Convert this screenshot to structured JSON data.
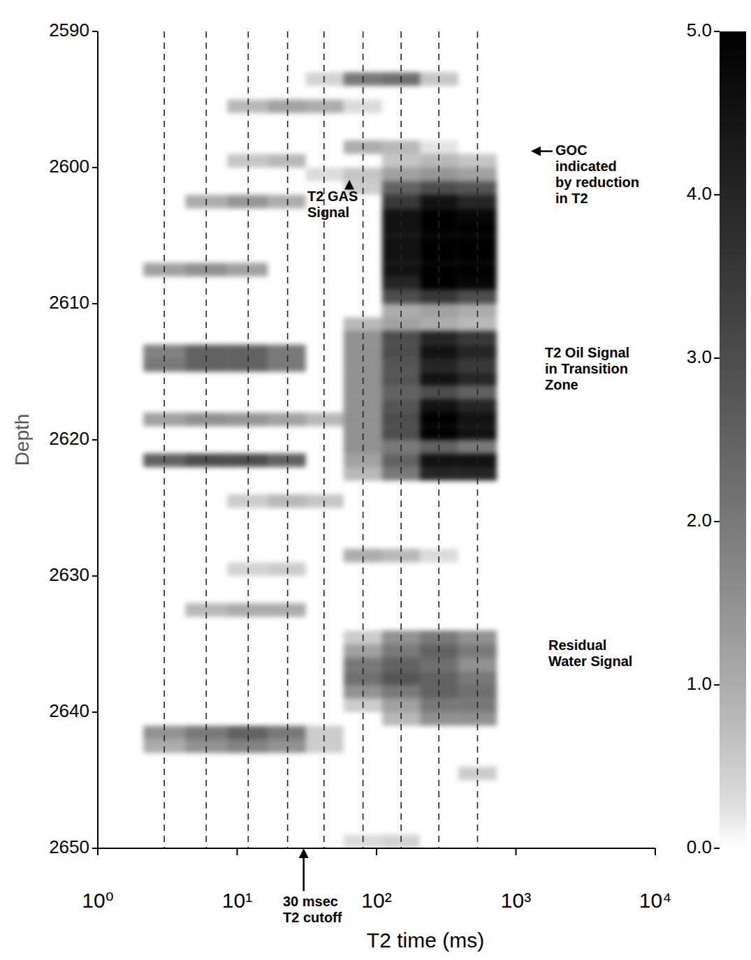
{
  "chart_data": {
    "type": "heatmap",
    "x_label": "T2 time (ms)",
    "y_label": "Depth",
    "log": "x",
    "grid": true,
    "xlim": [
      1,
      10000
    ],
    "ylim": [
      2590,
      2650
    ],
    "xticks": [
      {
        "value": 1,
        "label": "10⁰"
      },
      {
        "value": 10,
        "label": "10¹"
      },
      {
        "value": 100,
        "label": "10²"
      },
      {
        "value": 1000,
        "label": "10³"
      },
      {
        "value": 10000,
        "label": "10⁴"
      }
    ],
    "yticks": [
      2590,
      2600,
      2610,
      2620,
      2630,
      2640,
      2650
    ],
    "x": [
      3,
      6,
      12,
      23,
      42,
      80,
      150,
      280,
      530
    ],
    "cells": [
      {
        "depth": 2593.5,
        "values": [
          0,
          0,
          0,
          0,
          0.4,
          2.0,
          2.2,
          0.6,
          0
        ]
      },
      {
        "depth": 2595.5,
        "values": [
          0,
          0,
          0.8,
          1.2,
          1.0,
          0.3,
          0,
          0,
          0
        ]
      },
      {
        "depth": 2598.5,
        "values": [
          0,
          0,
          0,
          0,
          0,
          1.0,
          0.8,
          0.2,
          0
        ]
      },
      {
        "depth": 2599.5,
        "values": [
          0,
          0,
          0.6,
          0.8,
          0,
          0,
          0.6,
          0.8,
          0.6
        ]
      },
      {
        "depth": 2600.5,
        "values": [
          0,
          0,
          0,
          0,
          0.3,
          0.6,
          1.2,
          1.4,
          1.2
        ]
      },
      {
        "depth": 2601.5,
        "values": [
          0,
          0,
          0,
          0,
          0,
          0.5,
          2.5,
          3.0,
          2.8
        ]
      },
      {
        "depth": 2602.5,
        "values": [
          0,
          1.0,
          1.4,
          1.0,
          0,
          0,
          3.5,
          4.5,
          4.0
        ]
      },
      {
        "depth": 2603.5,
        "values": [
          0,
          0,
          0,
          0,
          0,
          0,
          4.5,
          5.0,
          4.8
        ]
      },
      {
        "depth": 2604.5,
        "values": [
          0,
          0,
          0,
          0,
          0,
          0,
          4.5,
          5.0,
          5.0
        ]
      },
      {
        "depth": 2605.5,
        "values": [
          0,
          0,
          0,
          0,
          0,
          0,
          4.5,
          5.0,
          5.0
        ]
      },
      {
        "depth": 2606.5,
        "values": [
          0,
          0,
          0,
          0,
          0,
          0,
          4.5,
          5.0,
          5.0
        ]
      },
      {
        "depth": 2607.5,
        "values": [
          1.2,
          1.5,
          1.2,
          0,
          0,
          0,
          4.5,
          5.0,
          5.0
        ]
      },
      {
        "depth": 2608.5,
        "values": [
          0,
          0,
          0,
          0,
          0,
          0,
          4.0,
          5.0,
          4.8
        ]
      },
      {
        "depth": 2609.5,
        "values": [
          0,
          0,
          0,
          0,
          0,
          0,
          3.0,
          3.5,
          3.0
        ]
      },
      {
        "depth": 2610.5,
        "values": [
          0,
          0,
          0,
          0,
          0,
          0,
          1.0,
          1.2,
          1.0
        ]
      },
      {
        "depth": 2611.5,
        "values": [
          0,
          0,
          0,
          0,
          0,
          0.8,
          1.2,
          1.0,
          0.8
        ]
      },
      {
        "depth": 2612.5,
        "values": [
          0,
          0,
          0,
          0,
          0,
          1.5,
          3.0,
          4.0,
          3.5
        ]
      },
      {
        "depth": 2613.5,
        "values": [
          1.8,
          2.5,
          2.5,
          2.0,
          0,
          1.5,
          3.0,
          4.5,
          4.0
        ]
      },
      {
        "depth": 2614.5,
        "values": [
          2.0,
          2.5,
          2.5,
          2.0,
          0,
          1.5,
          2.8,
          4.0,
          3.5
        ]
      },
      {
        "depth": 2615.5,
        "values": [
          0,
          0,
          0,
          0,
          0,
          1.5,
          2.8,
          4.5,
          4.0
        ]
      },
      {
        "depth": 2616.5,
        "values": [
          0,
          0,
          0,
          0,
          0,
          1.5,
          2.5,
          3.0,
          2.5
        ]
      },
      {
        "depth": 2617.5,
        "values": [
          0,
          0,
          0,
          0,
          0,
          1.5,
          2.8,
          4.5,
          4.0
        ]
      },
      {
        "depth": 2618.5,
        "values": [
          1.2,
          1.5,
          1.4,
          1.2,
          0.8,
          1.5,
          3.0,
          5.0,
          4.5
        ]
      },
      {
        "depth": 2619.5,
        "values": [
          0,
          0,
          0,
          0,
          0,
          1.5,
          3.0,
          5.0,
          4.5
        ]
      },
      {
        "depth": 2620.5,
        "values": [
          0,
          0,
          0,
          0,
          0,
          1.5,
          2.0,
          2.5,
          2.0
        ]
      },
      {
        "depth": 2621.5,
        "values": [
          2.5,
          3.0,
          3.0,
          2.5,
          0,
          1.2,
          2.5,
          4.5,
          4.5
        ]
      },
      {
        "depth": 2622.5,
        "values": [
          0,
          0,
          0,
          0,
          0,
          0.8,
          2.0,
          4.0,
          4.0
        ]
      },
      {
        "depth": 2624.5,
        "values": [
          0,
          0,
          0.5,
          0.8,
          0.6,
          0,
          0,
          0,
          0
        ]
      },
      {
        "depth": 2628.5,
        "values": [
          0,
          0,
          0,
          0,
          0,
          1.0,
          0.8,
          0.3,
          0
        ]
      },
      {
        "depth": 2629.5,
        "values": [
          0,
          0,
          0.4,
          0.5,
          0,
          0,
          0,
          0,
          0
        ]
      },
      {
        "depth": 2632.5,
        "values": [
          0,
          0.8,
          1.0,
          1.0,
          0,
          0,
          0,
          0,
          0
        ]
      },
      {
        "depth": 2634.5,
        "values": [
          0,
          0,
          0,
          0,
          0,
          0.5,
          1.5,
          2.0,
          1.5
        ]
      },
      {
        "depth": 2635.5,
        "values": [
          0,
          0,
          0,
          0,
          0,
          1.2,
          2.0,
          2.5,
          2.0
        ]
      },
      {
        "depth": 2636.5,
        "values": [
          0,
          0,
          0,
          0,
          0,
          2.0,
          2.5,
          2.2,
          1.5
        ]
      },
      {
        "depth": 2637.5,
        "values": [
          0,
          0,
          0,
          0,
          0,
          2.2,
          2.8,
          2.5,
          2.0
        ]
      },
      {
        "depth": 2638.5,
        "values": [
          0,
          0,
          0,
          0,
          0,
          1.5,
          2.0,
          2.5,
          2.2
        ]
      },
      {
        "depth": 2639.5,
        "values": [
          0,
          0,
          0,
          0,
          0,
          0.5,
          1.2,
          2.0,
          2.0
        ]
      },
      {
        "depth": 2640.5,
        "values": [
          0,
          0,
          0,
          0,
          0,
          0,
          0.8,
          1.5,
          1.5
        ]
      },
      {
        "depth": 2641.5,
        "values": [
          1.5,
          2.0,
          2.5,
          2.0,
          0.5,
          0,
          0,
          0,
          0
        ]
      },
      {
        "depth": 2642.5,
        "values": [
          1.0,
          1.5,
          1.8,
          1.5,
          0.5,
          0,
          0,
          0,
          0
        ]
      },
      {
        "depth": 2644.5,
        "values": [
          0,
          0,
          0,
          0,
          0,
          0,
          0,
          0,
          0.5
        ]
      },
      {
        "depth": 2649.5,
        "values": [
          0,
          0,
          0,
          0,
          0,
          0.3,
          0.4,
          0,
          0
        ]
      }
    ],
    "colorbar": {
      "range": [
        0,
        5
      ],
      "ticks": [
        {
          "value": 0,
          "label": "0.0"
        },
        {
          "value": 1,
          "label": "1.0"
        },
        {
          "value": 2,
          "label": "2.0"
        },
        {
          "value": 3,
          "label": "3.0"
        },
        {
          "value": 4,
          "label": "4.0"
        },
        {
          "value": 5,
          "label": "5.0"
        }
      ]
    },
    "annotations": [
      {
        "text": "GOC\nindicated\nby reduction\nin T2",
        "x": 1920,
        "y": 2598.8,
        "arrow_x": 1282,
        "arrow_y": 2598.8
      },
      {
        "text": "T2 GAS\nSignal",
        "x": 31.9,
        "y": 2602.2,
        "arrow_x": 63.8,
        "arrow_y": 2600.9
      },
      {
        "text": "T2 Oil Signal\nin Transition\nZone",
        "x": 1614,
        "y": 2613.7
      },
      {
        "text": "Residual\nWater Signal",
        "x": 1711,
        "y": 2635.2
      },
      {
        "text": "30 msec\nT2 cutoff",
        "x": 21.3,
        "y": 2654.0,
        "arrow_x": 30,
        "arrow_y": 2650
      }
    ]
  }
}
